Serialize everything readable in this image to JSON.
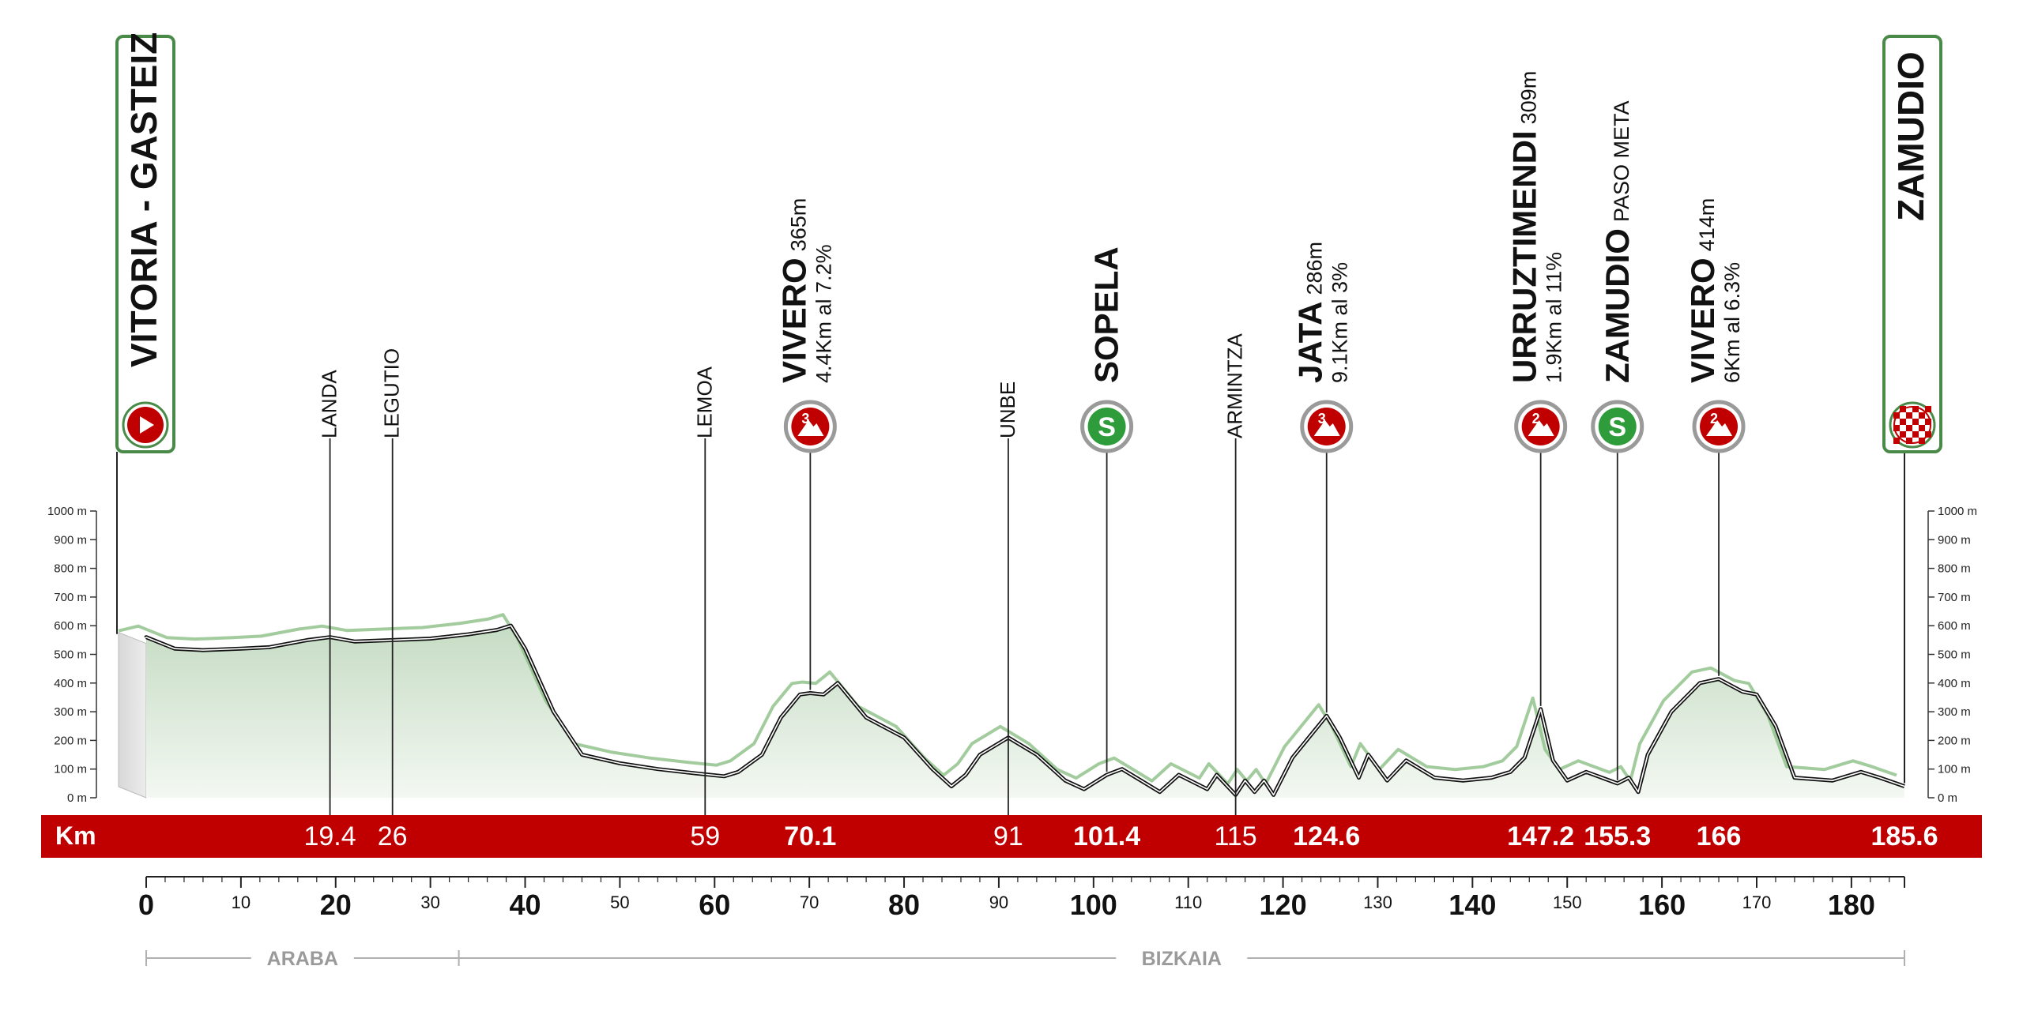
{
  "chart_data": {
    "type": "area",
    "distance_unit": "Km",
    "x_axis": {
      "range": [
        0,
        185.6
      ],
      "ticks": [
        0,
        10,
        20,
        30,
        40,
        50,
        60,
        70,
        80,
        90,
        100,
        110,
        120,
        130,
        140,
        150,
        160,
        170,
        180
      ],
      "major_ticks": [
        0,
        20,
        40,
        60,
        80,
        100,
        120,
        140,
        160,
        180
      ]
    },
    "y_axis": {
      "range": [
        0,
        1000
      ],
      "ticks": [
        0,
        100,
        200,
        300,
        400,
        500,
        600,
        700,
        800,
        900,
        1000
      ],
      "tick_labels": [
        "0 m",
        "100 m",
        "200 m",
        "300 m",
        "400 m",
        "500 m",
        "600 m",
        "700 m",
        "800 m",
        "900 m",
        "1000 m"
      ]
    },
    "elevation_profile": {
      "x": [
        0,
        3,
        6,
        10,
        13,
        17,
        19.4,
        22,
        26,
        30,
        34,
        37,
        38.5,
        40,
        43,
        46,
        50,
        54,
        58,
        61,
        62.5,
        65,
        67,
        69,
        70.1,
        71.5,
        73,
        76,
        80,
        83,
        85,
        86.5,
        88,
        91,
        94,
        97,
        99,
        101.4,
        103,
        105,
        107,
        109,
        112,
        113,
        115,
        116,
        117,
        118,
        119,
        121,
        124.6,
        126,
        128,
        129,
        131,
        133,
        136,
        139,
        142,
        144,
        145.5,
        147.2,
        148.5,
        150,
        152,
        155.3,
        156.5,
        157.5,
        158.5,
        161,
        164,
        166,
        168.5,
        170,
        172,
        174,
        178,
        181,
        183,
        185.6
      ],
      "y": [
        560,
        520,
        515,
        520,
        525,
        550,
        560,
        545,
        550,
        555,
        570,
        585,
        600,
        520,
        300,
        150,
        120,
        100,
        85,
        75,
        90,
        150,
        280,
        360,
        365,
        360,
        400,
        280,
        210,
        100,
        40,
        80,
        150,
        210,
        150,
        60,
        30,
        80,
        100,
        60,
        20,
        80,
        30,
        80,
        10,
        60,
        20,
        60,
        10,
        140,
        286,
        210,
        70,
        150,
        60,
        130,
        70,
        60,
        70,
        90,
        140,
        309,
        130,
        60,
        90,
        50,
        70,
        20,
        150,
        300,
        400,
        414,
        370,
        360,
        250,
        70,
        60,
        90,
        70,
        40
      ]
    },
    "waypoints": [
      {
        "km_label": "",
        "x": 0,
        "name": "VITORIA - GASTEIZ",
        "detail": "",
        "type": "start"
      },
      {
        "km_label": "19.4",
        "x": 19.4,
        "name": "LANDA",
        "detail": "",
        "type": "town"
      },
      {
        "km_label": "26",
        "x": 26,
        "name": "LEGUTIO",
        "detail": "",
        "type": "town"
      },
      {
        "km_label": "59",
        "x": 59,
        "name": "LEMOA",
        "detail": "",
        "type": "town"
      },
      {
        "km_label": "70.1",
        "x": 70.1,
        "name": "VIVERO",
        "detail": "365m",
        "detail2": "4.4Km al 7.2%",
        "type": "climb",
        "category": "3"
      },
      {
        "km_label": "91",
        "x": 91,
        "name": "UNBE",
        "detail": "",
        "type": "town"
      },
      {
        "km_label": "101.4",
        "x": 101.4,
        "name": "SOPELA",
        "detail": "",
        "type": "sprint"
      },
      {
        "km_label": "115",
        "x": 115,
        "name": "ARMINTZA",
        "detail": "",
        "type": "town"
      },
      {
        "km_label": "124.6",
        "x": 124.6,
        "name": "JATA",
        "detail": "286m",
        "detail2": "9.1Km al 3%",
        "type": "climb",
        "category": "3"
      },
      {
        "km_label": "147.2",
        "x": 147.2,
        "name": "URRUZTIMENDI",
        "detail": "309m",
        "detail2": "1.9Km al 11%",
        "type": "climb",
        "category": "2"
      },
      {
        "km_label": "155.3",
        "x": 155.3,
        "name": "ZAMUDIO",
        "detail": "PASO META",
        "type": "sprint"
      },
      {
        "km_label": "166",
        "x": 166,
        "name": "VIVERO",
        "detail": "414m",
        "detail2": "6Km al 6.3%",
        "type": "climb",
        "category": "2"
      },
      {
        "km_label": "185.6",
        "x": 185.6,
        "name": "ZAMUDIO",
        "detail": "",
        "type": "finish"
      }
    ],
    "regions": [
      {
        "name": "ARABA",
        "from": 0,
        "to": 33
      },
      {
        "name": "BIZKAIA",
        "from": 33,
        "to": 185.6
      }
    ],
    "colors": {
      "band": "#c00000",
      "frame_green": "#4a8a48",
      "sprint_green": "#2e9c3a",
      "climb_red": "#c00000",
      "area_top": "#c6dcc4",
      "area_bottom": "#f2f7f1"
    }
  },
  "band": {
    "label": "Km"
  }
}
